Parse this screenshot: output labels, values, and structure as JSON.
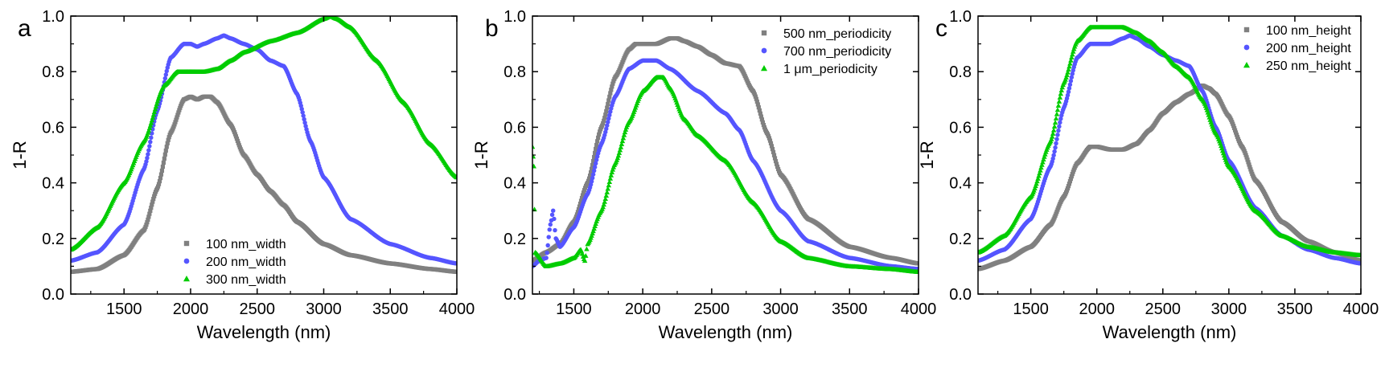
{
  "chart_data": [
    {
      "type": "scatter",
      "panel_label": "a",
      "xlabel": "Wavelength (nm)",
      "ylabel": "1-R",
      "xlim": [
        1100,
        4000
      ],
      "ylim": [
        0,
        1.0
      ],
      "xticks": [
        1500,
        2000,
        2500,
        3000,
        3500,
        4000
      ],
      "yticks": [
        0.0,
        0.2,
        0.4,
        0.6,
        0.8,
        1.0
      ],
      "legend_position": "bottom-center",
      "series": [
        {
          "name": "100 nm_width",
          "color": "#808080",
          "marker": "square",
          "x": [
            1100,
            1300,
            1500,
            1650,
            1750,
            1850,
            1950,
            2000,
            2050,
            2100,
            2150,
            2200,
            2300,
            2400,
            2500,
            2600,
            2700,
            2800,
            3000,
            3200,
            3500,
            3800,
            4000
          ],
          "y": [
            0.08,
            0.09,
            0.14,
            0.23,
            0.38,
            0.58,
            0.7,
            0.71,
            0.7,
            0.71,
            0.71,
            0.69,
            0.61,
            0.5,
            0.43,
            0.37,
            0.32,
            0.26,
            0.18,
            0.14,
            0.11,
            0.09,
            0.08
          ]
        },
        {
          "name": "200 nm_width",
          "color": "#5555FF",
          "marker": "circle",
          "x": [
            1100,
            1300,
            1500,
            1650,
            1750,
            1850,
            1950,
            2000,
            2050,
            2100,
            2200,
            2250,
            2300,
            2400,
            2500,
            2600,
            2700,
            2800,
            2900,
            3000,
            3200,
            3500,
            3800,
            4000
          ],
          "y": [
            0.12,
            0.15,
            0.25,
            0.45,
            0.66,
            0.85,
            0.9,
            0.9,
            0.89,
            0.9,
            0.92,
            0.93,
            0.92,
            0.9,
            0.88,
            0.84,
            0.82,
            0.72,
            0.55,
            0.42,
            0.27,
            0.18,
            0.13,
            0.11
          ]
        },
        {
          "name": "300 nm_width",
          "color": "#00CC00",
          "marker": "triangle",
          "x": [
            1100,
            1300,
            1500,
            1650,
            1800,
            1900,
            2000,
            2100,
            2200,
            2300,
            2400,
            2600,
            2800,
            3000,
            3050,
            3100,
            3200,
            3400,
            3600,
            3800,
            4000
          ],
          "y": [
            0.16,
            0.24,
            0.4,
            0.55,
            0.75,
            0.8,
            0.8,
            0.8,
            0.81,
            0.84,
            0.87,
            0.91,
            0.94,
            0.99,
            1.0,
            0.99,
            0.96,
            0.84,
            0.69,
            0.54,
            0.42
          ]
        }
      ]
    },
    {
      "type": "scatter",
      "panel_label": "b",
      "xlabel": "Wavelength (nm)",
      "ylabel": "1-R",
      "xlim": [
        1200,
        4000
      ],
      "ylim": [
        0,
        1.0
      ],
      "xticks": [
        1500,
        2000,
        2500,
        3000,
        3500,
        4000
      ],
      "yticks": [
        0.0,
        0.2,
        0.4,
        0.6,
        0.8,
        1.0
      ],
      "legend_position": "top-right",
      "series": [
        {
          "name": "500 nm_periodicity",
          "color": "#808080",
          "marker": "square",
          "x": [
            1200,
            1300,
            1400,
            1500,
            1600,
            1700,
            1800,
            1900,
            1950,
            2000,
            2100,
            2200,
            2250,
            2300,
            2400,
            2500,
            2600,
            2700,
            2800,
            2900,
            3000,
            3200,
            3500,
            3800,
            4000
          ],
          "y": [
            0.12,
            0.15,
            0.18,
            0.26,
            0.4,
            0.6,
            0.78,
            0.88,
            0.9,
            0.9,
            0.9,
            0.92,
            0.92,
            0.91,
            0.89,
            0.86,
            0.83,
            0.82,
            0.73,
            0.58,
            0.43,
            0.27,
            0.17,
            0.13,
            0.11
          ]
        },
        {
          "name": "700 nm_periodicity",
          "color": "#5555FF",
          "marker": "circle",
          "x": [
            1200,
            1250,
            1300,
            1330,
            1350,
            1370,
            1400,
            1500,
            1600,
            1700,
            1800,
            1900,
            2000,
            2100,
            2200,
            2400,
            2600,
            2700,
            2800,
            3000,
            3200,
            3500,
            3800,
            4000
          ],
          "y": [
            0.1,
            0.12,
            0.13,
            0.25,
            0.3,
            0.2,
            0.17,
            0.24,
            0.36,
            0.54,
            0.71,
            0.81,
            0.84,
            0.84,
            0.81,
            0.73,
            0.65,
            0.59,
            0.48,
            0.3,
            0.19,
            0.13,
            0.1,
            0.09
          ]
        },
        {
          "name": "1 μm_periodicity",
          "color": "#00CC00",
          "marker": "triangle",
          "x": [
            1200,
            1210,
            1220,
            1300,
            1400,
            1500,
            1550,
            1580,
            1600,
            1700,
            1800,
            1900,
            2000,
            2100,
            2150,
            2200,
            2300,
            2400,
            2600,
            2800,
            3000,
            3200,
            3500,
            3800,
            4000
          ],
          "y": [
            0.53,
            0.46,
            0.15,
            0.1,
            0.11,
            0.13,
            0.16,
            0.12,
            0.18,
            0.3,
            0.47,
            0.62,
            0.73,
            0.78,
            0.78,
            0.74,
            0.63,
            0.57,
            0.48,
            0.33,
            0.19,
            0.13,
            0.1,
            0.09,
            0.08
          ]
        }
      ]
    },
    {
      "type": "scatter",
      "panel_label": "c",
      "xlabel": "Wavelength (nm)",
      "ylabel": "1-R",
      "xlim": [
        1100,
        4000
      ],
      "ylim": [
        0,
        1.0
      ],
      "xticks": [
        1500,
        2000,
        2500,
        3000,
        3500,
        4000
      ],
      "yticks": [
        0.0,
        0.2,
        0.4,
        0.6,
        0.8,
        1.0
      ],
      "legend_position": "top-right",
      "series": [
        {
          "name": "100 nm_height",
          "color": "#808080",
          "marker": "square",
          "x": [
            1100,
            1300,
            1500,
            1650,
            1750,
            1850,
            1950,
            2000,
            2100,
            2200,
            2300,
            2400,
            2500,
            2600,
            2700,
            2800,
            2850,
            2900,
            3000,
            3100,
            3200,
            3400,
            3600,
            3800,
            4000
          ],
          "y": [
            0.09,
            0.12,
            0.17,
            0.25,
            0.35,
            0.47,
            0.53,
            0.53,
            0.52,
            0.52,
            0.54,
            0.59,
            0.65,
            0.69,
            0.72,
            0.75,
            0.74,
            0.72,
            0.64,
            0.53,
            0.41,
            0.26,
            0.19,
            0.15,
            0.12
          ]
        },
        {
          "name": "200 nm_height",
          "color": "#5555FF",
          "marker": "circle",
          "x": [
            1100,
            1300,
            1500,
            1650,
            1750,
            1850,
            1950,
            2000,
            2100,
            2200,
            2250,
            2300,
            2400,
            2500,
            2600,
            2700,
            2800,
            2900,
            3000,
            3200,
            3400,
            3600,
            3800,
            4000
          ],
          "y": [
            0.12,
            0.16,
            0.27,
            0.46,
            0.67,
            0.85,
            0.9,
            0.9,
            0.9,
            0.92,
            0.93,
            0.92,
            0.89,
            0.86,
            0.84,
            0.82,
            0.73,
            0.6,
            0.48,
            0.31,
            0.21,
            0.16,
            0.13,
            0.11
          ]
        },
        {
          "name": "250 nm_height",
          "color": "#00CC00",
          "marker": "triangle",
          "x": [
            1100,
            1300,
            1500,
            1650,
            1750,
            1850,
            1950,
            2050,
            2150,
            2200,
            2300,
            2400,
            2500,
            2600,
            2700,
            2800,
            2900,
            3000,
            3200,
            3400,
            3600,
            3800,
            4000
          ],
          "y": [
            0.15,
            0.21,
            0.35,
            0.55,
            0.76,
            0.91,
            0.96,
            0.96,
            0.96,
            0.96,
            0.94,
            0.91,
            0.87,
            0.82,
            0.78,
            0.7,
            0.58,
            0.46,
            0.3,
            0.21,
            0.17,
            0.15,
            0.14
          ]
        }
      ]
    }
  ]
}
